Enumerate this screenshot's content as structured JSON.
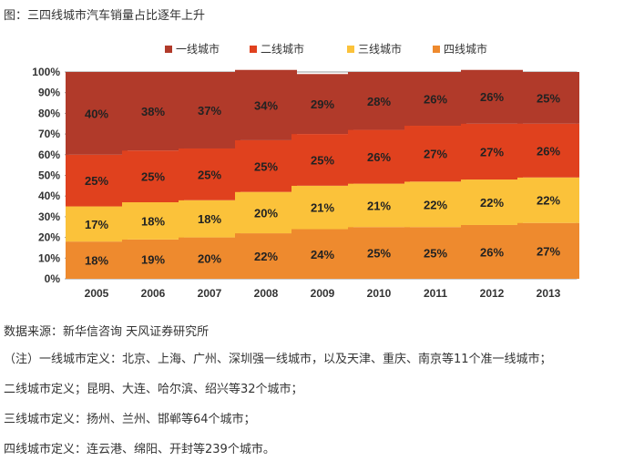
{
  "caption": "图：三四线城市汽车销量占比逐年上升",
  "chart_data": {
    "type": "bar",
    "stacked": true,
    "categories": [
      "2005",
      "2006",
      "2007",
      "2008",
      "2009",
      "2010",
      "2011",
      "2012",
      "2013"
    ],
    "series": [
      {
        "name": "四线城市",
        "color": "#ee8a2e",
        "values": [
          18,
          19,
          20,
          22,
          24,
          25,
          25,
          26,
          27
        ]
      },
      {
        "name": "三线城市",
        "color": "#fbc23a",
        "values": [
          17,
          18,
          18,
          20,
          21,
          21,
          22,
          22,
          22
        ]
      },
      {
        "name": "二线城市",
        "color": "#e0411e",
        "values": [
          25,
          25,
          25,
          25,
          25,
          26,
          27,
          27,
          26
        ]
      },
      {
        "name": "一线城市",
        "color": "#b13a2a",
        "values": [
          40,
          38,
          37,
          34,
          29,
          28,
          26,
          26,
          25
        ]
      }
    ],
    "legend_order": [
      "一线城市",
      "二线城市",
      "三线城市",
      "四线城市"
    ],
    "ylim": [
      0,
      100
    ],
    "yticks": [
      "0%",
      "10%",
      "20%",
      "30%",
      "40%",
      "50%",
      "60%",
      "70%",
      "80%",
      "90%",
      "100%"
    ],
    "value_suffix": "%",
    "legend_position": "top"
  },
  "source": "数据来源：新华信咨询 天风证券研究所",
  "notes": [
    "（注）一线城市定义：北京、上海、广州、深圳强一线城市，以及天津、重庆、南京等11个准一线城市；",
    "二线城市定义；昆明、大连、哈尔滨、绍兴等32个城市；",
    "三线城市定义：扬州、兰州、邯郸等64个城市；",
    "四线城市定义：连云港、绵阳、开封等239个城市。"
  ]
}
